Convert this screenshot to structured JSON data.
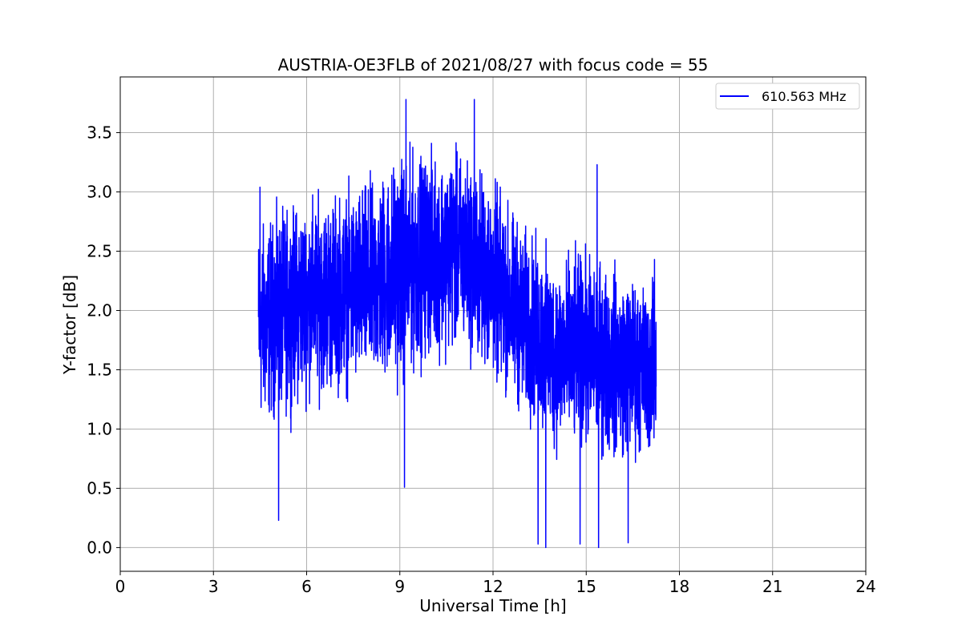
{
  "chart_data": {
    "type": "line",
    "title": "AUSTRIA-OE3FLB of 2021/08/27 with focus code = 55",
    "xlabel": "Universal Time [h]",
    "ylabel": "Y-factor [dB]",
    "xlim": [
      0,
      24
    ],
    "ylim": [
      -0.2,
      3.97
    ],
    "x_ticks": [
      0,
      3,
      6,
      9,
      12,
      15,
      18,
      21,
      24
    ],
    "x_tick_labels": [
      "0",
      "3",
      "6",
      "9",
      "12",
      "15",
      "18",
      "21",
      "24"
    ],
    "y_ticks": [
      0.0,
      0.5,
      1.0,
      1.5,
      2.0,
      2.5,
      3.0,
      3.5
    ],
    "y_tick_labels": [
      "0.0",
      "0.5",
      "1.0",
      "1.5",
      "2.0",
      "2.5",
      "3.0",
      "3.5"
    ],
    "grid": true,
    "legend_position": "top-right",
    "series": [
      {
        "name": "610.563 MHz",
        "color": "#0000ff",
        "x_range": [
          4.45,
          17.25
        ],
        "noise_band": {
          "hours": [
            4.5,
            6.0,
            7.0,
            8.0,
            9.0,
            10.0,
            11.0,
            12.0,
            13.0,
            14.0,
            15.0,
            16.0,
            17.25
          ],
          "low": [
            0.8,
            1.05,
            1.1,
            1.1,
            1.15,
            1.4,
            1.45,
            1.2,
            0.9,
            0.6,
            0.6,
            0.55,
            0.6
          ],
          "high": [
            2.95,
            3.15,
            3.2,
            3.3,
            3.55,
            3.55,
            3.55,
            3.3,
            2.9,
            2.65,
            2.7,
            2.55,
            2.4
          ]
        },
        "notable_points": [
          {
            "x": 4.5,
            "y": 3.04
          },
          {
            "x": 5.1,
            "y": 0.23
          },
          {
            "x": 9.2,
            "y": 3.78
          },
          {
            "x": 9.15,
            "y": 0.51
          },
          {
            "x": 11.4,
            "y": 3.78
          },
          {
            "x": 13.7,
            "y": 0.0
          },
          {
            "x": 13.45,
            "y": 0.03
          },
          {
            "x": 14.8,
            "y": 0.03
          },
          {
            "x": 15.4,
            "y": 0.0
          },
          {
            "x": 15.35,
            "y": 3.23
          },
          {
            "x": 16.35,
            "y": 0.04
          },
          {
            "x": 17.2,
            "y": 2.43
          }
        ]
      }
    ]
  }
}
